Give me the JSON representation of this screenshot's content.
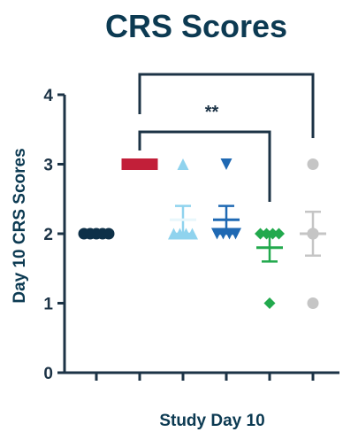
{
  "chart_data": {
    "type": "scatter",
    "title": "CRS Scores",
    "xlabel": "Study Day 10",
    "ylabel": "Day 10 CRS Scores",
    "ylim": [
      0,
      4
    ],
    "yticks": [
      0,
      1,
      2,
      3,
      4
    ],
    "categories": [
      "",
      "",
      "",
      "",
      "",
      ""
    ],
    "legend": "none",
    "grid": false,
    "colors": {
      "title": "#0c3a52",
      "axis": "#1c3346",
      "bracket": "#1c3346"
    },
    "series": [
      {
        "marker": "circle",
        "color": "#0d3048",
        "values": [
          2,
          2,
          2,
          2,
          2
        ],
        "mean": 2.0,
        "sem": 0.0
      },
      {
        "marker": "square",
        "color": "#c21f39",
        "values": [
          3,
          3,
          3,
          3,
          3
        ],
        "mean": 3.0,
        "sem": 0.0
      },
      {
        "marker": "triangle-up",
        "color": "#8fd3ee",
        "values": [
          3,
          2,
          2,
          2,
          2
        ],
        "mean": 2.2,
        "sem": 0.2
      },
      {
        "marker": "triangle-down",
        "color": "#1f69b3",
        "values": [
          3,
          2,
          2,
          2,
          2
        ],
        "mean": 2.2,
        "sem": 0.2
      },
      {
        "marker": "diamond",
        "color": "#22a94d",
        "values": [
          2,
          2,
          2,
          2,
          1
        ],
        "mean": 1.8,
        "sem": 0.2
      },
      {
        "marker": "circle",
        "color": "#c5c5c5",
        "values": [
          3,
          2,
          2,
          2,
          1
        ],
        "mean": 2.0,
        "sem": 0.316
      }
    ],
    "annotations": [
      {
        "type": "significance-bracket",
        "from": 1,
        "to": 5,
        "label": ""
      },
      {
        "type": "significance-bracket",
        "from": 1,
        "to": 4,
        "label": "**"
      }
    ]
  }
}
